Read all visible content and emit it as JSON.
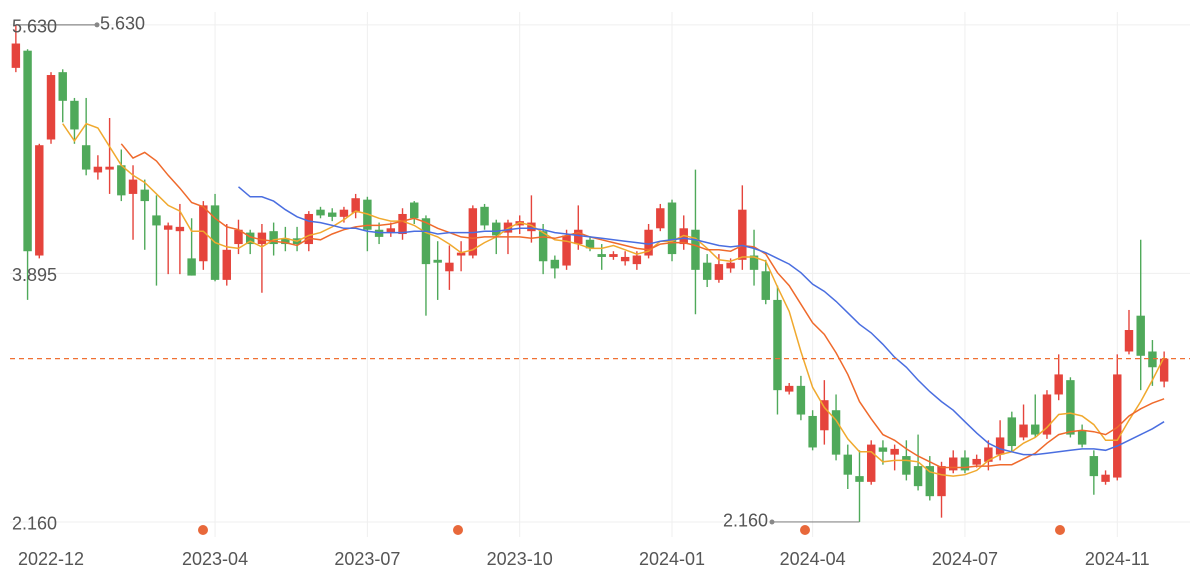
{
  "chart_data": {
    "type": "candlestick",
    "categories": [
      null,
      null,
      null,
      "2022-12",
      null,
      null,
      null,
      null,
      null,
      null,
      null,
      null,
      null,
      null,
      null,
      null,
      null,
      "2023-04",
      null,
      null,
      null,
      null,
      null,
      null,
      null,
      null,
      null,
      null,
      null,
      null,
      "2023-07",
      null,
      null,
      null,
      null,
      null,
      null,
      null,
      null,
      null,
      null,
      null,
      null,
      "2023-10",
      null,
      null,
      null,
      null,
      null,
      null,
      null,
      null,
      null,
      null,
      null,
      null,
      "2024-01",
      null,
      null,
      null,
      null,
      null,
      null,
      null,
      null,
      null,
      null,
      null,
      "2024-04",
      null,
      null,
      null,
      null,
      null,
      null,
      null,
      null,
      null,
      null,
      null,
      null,
      "2024-07",
      null,
      null,
      null,
      null,
      null,
      null,
      null,
      null,
      null,
      null,
      null,
      null,
      "2024-11",
      null,
      null,
      null,
      null
    ],
    "open": [
      5.33,
      5.45,
      4.02,
      4.83,
      5.3,
      5.1,
      4.79,
      4.6,
      4.62,
      4.65,
      4.45,
      4.48,
      4.3,
      4.2,
      4.19,
      4.0,
      3.98,
      4.37,
      3.85,
      4.1,
      4.18,
      4.1,
      4.19,
      4.14,
      4.14,
      4.1,
      4.34,
      4.32,
      4.29,
      4.32,
      4.41,
      4.2,
      4.18,
      4.17,
      4.39,
      4.28,
      3.99,
      3.91,
      4.02,
      4.02,
      4.36,
      4.25,
      4.18,
      4.23,
      4.19,
      4.19,
      3.99,
      3.95,
      4.1,
      4.13,
      4.03,
      4.01,
      3.98,
      3.96,
      4.02,
      4.21,
      4.39,
      4.1,
      4.2,
      3.97,
      3.85,
      3.93,
      3.99,
      4.02,
      3.91,
      3.71,
      3.07,
      3.11,
      2.9,
      2.8,
      2.94,
      2.63,
      2.48,
      2.44,
      2.68,
      2.63,
      2.62,
      2.55,
      2.55,
      2.34,
      2.52,
      2.61,
      2.56,
      2.58,
      2.63,
      2.89,
      2.75,
      2.84,
      2.77,
      3.05,
      3.15,
      2.8,
      2.62,
      2.44,
      2.47,
      3.35,
      3.6,
      3.35,
      3.14
    ],
    "high": [
      5.63,
      5.46,
      4.8,
      5.3,
      5.32,
      5.12,
      5.12,
      4.72,
      4.98,
      4.76,
      4.65,
      4.55,
      4.44,
      4.25,
      4.38,
      4.28,
      4.4,
      4.45,
      4.24,
      4.27,
      4.2,
      4.24,
      4.25,
      4.22,
      4.22,
      4.33,
      4.36,
      4.35,
      4.36,
      4.45,
      4.43,
      4.25,
      4.25,
      4.35,
      4.4,
      4.3,
      4.12,
      4.09,
      4.12,
      4.37,
      4.38,
      4.27,
      4.27,
      4.3,
      4.44,
      4.24,
      4.02,
      4.2,
      4.37,
      4.15,
      4.1,
      4.05,
      4.05,
      4.05,
      4.24,
      4.38,
      4.41,
      4.3,
      4.62,
      4.03,
      4.03,
      4.0,
      4.51,
      4.2,
      3.99,
      3.81,
      3.13,
      3.18,
      2.94,
      3.15,
      3.05,
      2.7,
      2.66,
      2.73,
      2.73,
      2.7,
      2.73,
      2.77,
      2.62,
      2.58,
      2.66,
      2.66,
      2.63,
      2.73,
      2.87,
      2.93,
      2.98,
      3.05,
      3.08,
      3.33,
      3.17,
      2.84,
      2.66,
      2.52,
      3.33,
      3.64,
      4.13,
      3.43,
      3.35
    ],
    "low": [
      5.3,
      3.71,
      4.0,
      4.8,
      4.95,
      4.8,
      4.58,
      4.55,
      4.45,
      4.4,
      4.13,
      4.06,
      3.81,
      3.89,
      3.89,
      3.88,
      3.92,
      3.84,
      3.81,
      4.03,
      4.03,
      3.76,
      4.02,
      4.05,
      4.05,
      4.05,
      4.28,
      4.26,
      4.25,
      4.28,
      4.05,
      4.1,
      4.15,
      4.13,
      4.24,
      3.6,
      3.71,
      3.78,
      3.91,
      4.0,
      4.2,
      4.03,
      4.03,
      4.17,
      4.11,
      3.89,
      3.86,
      3.92,
      4.06,
      4.05,
      3.92,
      3.99,
      3.95,
      3.92,
      4.0,
      4.19,
      3.98,
      4.06,
      3.61,
      3.8,
      3.83,
      3.9,
      3.92,
      3.81,
      3.68,
      2.91,
      3.05,
      2.87,
      2.66,
      2.7,
      2.59,
      2.39,
      2.16,
      2.42,
      2.56,
      2.52,
      2.45,
      2.38,
      2.31,
      2.19,
      2.5,
      2.5,
      2.54,
      2.52,
      2.59,
      2.65,
      2.73,
      2.75,
      2.74,
      3.01,
      2.75,
      2.68,
      2.35,
      2.42,
      2.45,
      3.33,
      3.08,
      3.11,
      3.1
    ],
    "close": [
      5.5,
      4.05,
      4.79,
      5.28,
      5.1,
      4.9,
      4.62,
      4.64,
      4.64,
      4.44,
      4.55,
      4.4,
      4.23,
      4.23,
      4.22,
      3.88,
      4.37,
      3.85,
      4.06,
      4.2,
      4.1,
      4.18,
      4.1,
      4.1,
      4.1,
      4.31,
      4.3,
      4.29,
      4.34,
      4.42,
      4.2,
      4.15,
      4.21,
      4.31,
      4.28,
      3.96,
      3.97,
      3.97,
      4.04,
      4.35,
      4.23,
      4.16,
      4.25,
      4.26,
      4.25,
      3.98,
      3.93,
      4.16,
      4.2,
      4.07,
      4.01,
      4.03,
      4.01,
      4.02,
      4.2,
      4.35,
      4.03,
      4.21,
      3.92,
      3.85,
      3.96,
      3.97,
      4.34,
      3.92,
      3.71,
      3.08,
      3.11,
      2.91,
      2.68,
      3.01,
      2.63,
      2.49,
      2.44,
      2.7,
      2.65,
      2.67,
      2.49,
      2.41,
      2.34,
      2.55,
      2.61,
      2.52,
      2.6,
      2.68,
      2.75,
      2.69,
      2.84,
      2.77,
      3.05,
      3.19,
      2.77,
      2.7,
      2.48,
      2.49,
      3.19,
      3.5,
      3.32,
      3.24,
      3.3
    ],
    "up_color": "#e5443c",
    "down_color": "#4fa95a",
    "lines": [
      {
        "color": "#f0a92e",
        "values": [
          null,
          null,
          null,
          null,
          4.94,
          4.82,
          4.94,
          4.91,
          4.78,
          4.65,
          4.58,
          4.53,
          4.45,
          4.37,
          4.33,
          4.19,
          4.19,
          4.11,
          4.08,
          4.07,
          4.12,
          4.08,
          4.13,
          4.14,
          4.12,
          4.16,
          4.18,
          4.22,
          4.27,
          4.33,
          4.31,
          4.28,
          4.26,
          4.26,
          4.23,
          4.18,
          4.15,
          4.1,
          4.04,
          4.06,
          4.11,
          4.15,
          4.21,
          4.25,
          4.23,
          4.18,
          4.13,
          4.12,
          4.1,
          4.07,
          4.07,
          4.09,
          4.06,
          4.03,
          4.05,
          4.12,
          4.12,
          4.16,
          4.14,
          4.07,
          3.99,
          3.98,
          4.01,
          4.01,
          3.98,
          3.8,
          3.63,
          3.35,
          3.1,
          2.96,
          2.87,
          2.74,
          2.65,
          2.65,
          2.58,
          2.59,
          2.59,
          2.58,
          2.51,
          2.49,
          2.48,
          2.49,
          2.52,
          2.59,
          2.63,
          2.65,
          2.71,
          2.75,
          2.82,
          2.91,
          2.92,
          2.9,
          2.84,
          2.73,
          2.73,
          2.87,
          3.0,
          3.15,
          3.31
        ]
      },
      {
        "color": "#ef6a2c",
        "values": [
          null,
          null,
          null,
          null,
          null,
          null,
          null,
          null,
          null,
          4.8,
          4.7,
          4.74,
          4.68,
          4.58,
          4.49,
          4.39,
          4.36,
          4.28,
          4.22,
          4.2,
          4.15,
          4.13,
          4.12,
          4.11,
          4.09,
          4.14,
          4.13,
          4.17,
          4.2,
          4.22,
          4.23,
          4.23,
          4.24,
          4.26,
          4.28,
          4.25,
          4.21,
          4.18,
          4.15,
          4.14,
          4.15,
          4.15,
          4.15,
          4.15,
          4.14,
          4.15,
          4.14,
          4.16,
          4.18,
          4.15,
          4.13,
          4.11,
          4.09,
          4.07,
          4.06,
          4.1,
          4.11,
          4.11,
          4.09,
          4.06,
          4.06,
          4.05,
          4.09,
          4.08,
          4.03,
          3.9,
          3.81,
          3.68,
          3.55,
          3.47,
          3.34,
          3.19,
          3.0,
          2.88,
          2.77,
          2.73,
          2.67,
          2.62,
          2.58,
          2.54,
          2.54,
          2.54,
          2.55,
          2.55,
          2.56,
          2.56,
          2.6,
          2.64,
          2.71,
          2.77,
          2.79,
          2.8,
          2.79,
          2.77,
          2.82,
          2.9,
          2.95,
          2.99,
          3.02
        ]
      },
      {
        "color": "#4a6ee0",
        "values": [
          null,
          null,
          null,
          null,
          null,
          null,
          null,
          null,
          null,
          null,
          null,
          null,
          null,
          null,
          null,
          null,
          null,
          null,
          null,
          4.5,
          4.43,
          4.43,
          4.4,
          4.34,
          4.29,
          4.26,
          4.25,
          4.23,
          4.21,
          4.21,
          4.19,
          4.18,
          4.18,
          4.18,
          4.19,
          4.19,
          4.17,
          4.18,
          4.18,
          4.18,
          4.19,
          4.19,
          4.2,
          4.21,
          4.21,
          4.2,
          4.18,
          4.17,
          4.16,
          4.15,
          4.14,
          4.13,
          4.12,
          4.11,
          4.1,
          4.12,
          4.13,
          4.14,
          4.13,
          4.11,
          4.09,
          4.08,
          4.09,
          4.07,
          4.04,
          4.0,
          3.96,
          3.9,
          3.82,
          3.77,
          3.7,
          3.62,
          3.54,
          3.48,
          3.4,
          3.31,
          3.24,
          3.15,
          3.07,
          3.0,
          2.94,
          2.86,
          2.78,
          2.71,
          2.67,
          2.65,
          2.63,
          2.63,
          2.64,
          2.65,
          2.66,
          2.67,
          2.67,
          2.66,
          2.69,
          2.73,
          2.77,
          2.81,
          2.86
        ]
      }
    ],
    "last_price": 3.3,
    "price_line_color": "#f07032",
    "annotations": [
      {
        "value": 5.63,
        "label": "5.630"
      },
      {
        "value": 2.16,
        "label": "2.160"
      }
    ],
    "ylim": [
      2.055,
      5.72
    ],
    "yticks": [
      {
        "value": 2.16,
        "label": "2.160"
      },
      {
        "value": 3.895,
        "label": "3.895"
      },
      {
        "value": 5.63,
        "label": "5.630"
      }
    ],
    "grid": true
  }
}
